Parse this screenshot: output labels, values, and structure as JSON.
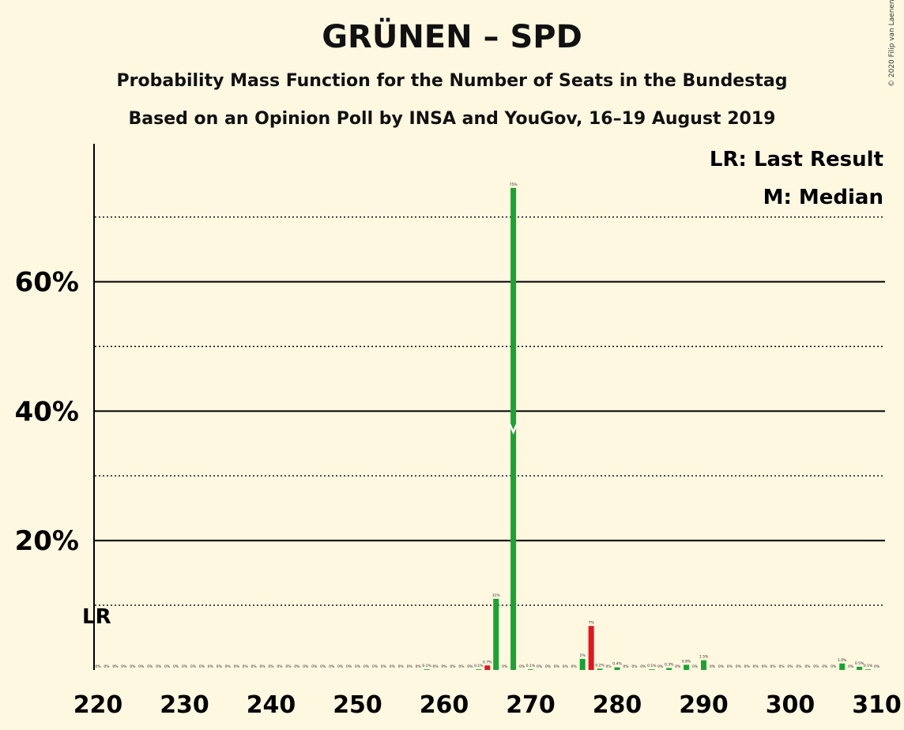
{
  "title": "GRÜNEN – SPD",
  "subtitle": "Probability Mass Function for the Number of Seats in the Bundestag",
  "subtitle2": "Based on an Opinion Poll by INSA and YouGov, 16–19 August 2019",
  "copyright": "© 2020 Filip van Laenen",
  "legend": {
    "lr": "LR: Last Result",
    "m": "M: Median"
  },
  "markers": {
    "last_result_label": "LR",
    "last_result_seat": 220,
    "median_seat": 268,
    "median_symbol": "M"
  },
  "colors": {
    "green": "#1aa333",
    "red": "#e8141c",
    "background": "#fff8e1"
  },
  "chart_data": {
    "type": "bar",
    "xlabel": "",
    "ylabel": "",
    "xlim": [
      220,
      310
    ],
    "ylim": [
      0,
      80
    ],
    "x_ticks": [
      "220",
      "230",
      "240",
      "250",
      "260",
      "270",
      "280",
      "290",
      "300",
      "310"
    ],
    "y_ticks": [
      "20%",
      "40%",
      "60%"
    ],
    "grid": "solid lines at 20/40/60%, dotted lines at 10/30/50/70%",
    "legend_position": "top-right",
    "bars": [
      {
        "x": 220,
        "value": 0,
        "label": "0%",
        "color": "green"
      },
      {
        "x": 221,
        "value": 0,
        "label": "0%",
        "color": "green"
      },
      {
        "x": 222,
        "value": 0,
        "label": "0%",
        "color": "green"
      },
      {
        "x": 223,
        "value": 0,
        "label": "0%",
        "color": "green"
      },
      {
        "x": 224,
        "value": 0,
        "label": "0%",
        "color": "green"
      },
      {
        "x": 225,
        "value": 0,
        "label": "0%",
        "color": "green"
      },
      {
        "x": 226,
        "value": 0,
        "label": "0%",
        "color": "green"
      },
      {
        "x": 227,
        "value": 0,
        "label": "0%",
        "color": "green"
      },
      {
        "x": 228,
        "value": 0,
        "label": "0%",
        "color": "green"
      },
      {
        "x": 229,
        "value": 0,
        "label": "0%",
        "color": "green"
      },
      {
        "x": 230,
        "value": 0,
        "label": "0%",
        "color": "green"
      },
      {
        "x": 231,
        "value": 0,
        "label": "0%",
        "color": "green"
      },
      {
        "x": 232,
        "value": 0,
        "label": "0%",
        "color": "green"
      },
      {
        "x": 233,
        "value": 0,
        "label": "0%",
        "color": "green"
      },
      {
        "x": 234,
        "value": 0,
        "label": "0%",
        "color": "green"
      },
      {
        "x": 235,
        "value": 0,
        "label": "0%",
        "color": "green"
      },
      {
        "x": 236,
        "value": 0,
        "label": "0%",
        "color": "green"
      },
      {
        "x": 237,
        "value": 0,
        "label": "0%",
        "color": "green"
      },
      {
        "x": 238,
        "value": 0,
        "label": "0%",
        "color": "green"
      },
      {
        "x": 239,
        "value": 0,
        "label": "0%",
        "color": "green"
      },
      {
        "x": 240,
        "value": 0,
        "label": "0%",
        "color": "green"
      },
      {
        "x": 241,
        "value": 0,
        "label": "0%",
        "color": "green"
      },
      {
        "x": 242,
        "value": 0,
        "label": "0%",
        "color": "green"
      },
      {
        "x": 243,
        "value": 0,
        "label": "0%",
        "color": "green"
      },
      {
        "x": 244,
        "value": 0,
        "label": "0%",
        "color": "green"
      },
      {
        "x": 245,
        "value": 0,
        "label": "0%",
        "color": "green"
      },
      {
        "x": 246,
        "value": 0,
        "label": "0%",
        "color": "green"
      },
      {
        "x": 247,
        "value": 0,
        "label": "0%",
        "color": "green"
      },
      {
        "x": 248,
        "value": 0,
        "label": "0%",
        "color": "green"
      },
      {
        "x": 249,
        "value": 0,
        "label": "0%",
        "color": "green"
      },
      {
        "x": 250,
        "value": 0,
        "label": "0%",
        "color": "green"
      },
      {
        "x": 251,
        "value": 0,
        "label": "0%",
        "color": "green"
      },
      {
        "x": 252,
        "value": 0,
        "label": "0%",
        "color": "green"
      },
      {
        "x": 253,
        "value": 0,
        "label": "0%",
        "color": "green"
      },
      {
        "x": 254,
        "value": 0,
        "label": "0%",
        "color": "green"
      },
      {
        "x": 255,
        "value": 0,
        "label": "0%",
        "color": "green"
      },
      {
        "x": 256,
        "value": 0,
        "label": "0%",
        "color": "green"
      },
      {
        "x": 257,
        "value": 0,
        "label": "0%",
        "color": "green"
      },
      {
        "x": 258,
        "value": 0.1,
        "label": "0.1%",
        "color": "green"
      },
      {
        "x": 259,
        "value": 0,
        "label": "0%",
        "color": "green"
      },
      {
        "x": 260,
        "value": 0,
        "label": "0%",
        "color": "green"
      },
      {
        "x": 261,
        "value": 0,
        "label": "0%",
        "color": "green"
      },
      {
        "x": 262,
        "value": 0,
        "label": "0%",
        "color": "green"
      },
      {
        "x": 263,
        "value": 0,
        "label": "0%",
        "color": "green"
      },
      {
        "x": 264,
        "value": 0.1,
        "label": "0.1%",
        "color": "green"
      },
      {
        "x": 265,
        "value": 0.7,
        "label": "0.7%",
        "color": "red"
      },
      {
        "x": 266,
        "value": 11,
        "label": "11%",
        "color": "green"
      },
      {
        "x": 267,
        "value": 0,
        "label": "0%",
        "color": "green"
      },
      {
        "x": 268,
        "value": 74.5,
        "label": "75%",
        "color": "green"
      },
      {
        "x": 269,
        "value": 0,
        "label": "0%",
        "color": "green"
      },
      {
        "x": 270,
        "value": 0.1,
        "label": "0.1%",
        "color": "green"
      },
      {
        "x": 271,
        "value": 0,
        "label": "0%",
        "color": "green"
      },
      {
        "x": 272,
        "value": 0,
        "label": "0%",
        "color": "green"
      },
      {
        "x": 273,
        "value": 0,
        "label": "0%",
        "color": "green"
      },
      {
        "x": 274,
        "value": 0,
        "label": "0%",
        "color": "green"
      },
      {
        "x": 275,
        "value": 0,
        "label": "0%",
        "color": "green"
      },
      {
        "x": 276,
        "value": 1.7,
        "label": "2%",
        "color": "green"
      },
      {
        "x": 277,
        "value": 6.8,
        "label": "7%",
        "color": "red"
      },
      {
        "x": 278,
        "value": 0.2,
        "label": "0.2%",
        "color": "green"
      },
      {
        "x": 279,
        "value": 0,
        "label": "0%",
        "color": "green"
      },
      {
        "x": 280,
        "value": 0.4,
        "label": "0.4%",
        "color": "green"
      },
      {
        "x": 281,
        "value": 0,
        "label": "0%",
        "color": "green"
      },
      {
        "x": 282,
        "value": 0,
        "label": "0%",
        "color": "green"
      },
      {
        "x": 283,
        "value": 0,
        "label": "0%",
        "color": "green"
      },
      {
        "x": 284,
        "value": 0.1,
        "label": "0.1%",
        "color": "green"
      },
      {
        "x": 285,
        "value": 0,
        "label": "0%",
        "color": "green"
      },
      {
        "x": 286,
        "value": 0.3,
        "label": "0.3%",
        "color": "green"
      },
      {
        "x": 287,
        "value": 0,
        "label": "0%",
        "color": "green"
      },
      {
        "x": 288,
        "value": 0.8,
        "label": "0.8%",
        "color": "green"
      },
      {
        "x": 289,
        "value": 0,
        "label": "0%",
        "color": "green"
      },
      {
        "x": 290,
        "value": 1.5,
        "label": "1.5%",
        "color": "green"
      },
      {
        "x": 291,
        "value": 0,
        "label": "0%",
        "color": "green"
      },
      {
        "x": 292,
        "value": 0,
        "label": "0%",
        "color": "green"
      },
      {
        "x": 293,
        "value": 0,
        "label": "0%",
        "color": "green"
      },
      {
        "x": 294,
        "value": 0,
        "label": "0%",
        "color": "green"
      },
      {
        "x": 295,
        "value": 0,
        "label": "0%",
        "color": "green"
      },
      {
        "x": 296,
        "value": 0,
        "label": "0%",
        "color": "green"
      },
      {
        "x": 297,
        "value": 0,
        "label": "0%",
        "color": "green"
      },
      {
        "x": 298,
        "value": 0,
        "label": "0%",
        "color": "green"
      },
      {
        "x": 299,
        "value": 0,
        "label": "0%",
        "color": "green"
      },
      {
        "x": 300,
        "value": 0,
        "label": "0%",
        "color": "green"
      },
      {
        "x": 301,
        "value": 0,
        "label": "0%",
        "color": "green"
      },
      {
        "x": 302,
        "value": 0,
        "label": "0%",
        "color": "green"
      },
      {
        "x": 303,
        "value": 0,
        "label": "0%",
        "color": "green"
      },
      {
        "x": 304,
        "value": 0,
        "label": "0%",
        "color": "green"
      },
      {
        "x": 305,
        "value": 0,
        "label": "0%",
        "color": "green"
      },
      {
        "x": 306,
        "value": 1.0,
        "label": "1.0%",
        "color": "green"
      },
      {
        "x": 307,
        "value": 0,
        "label": "0%",
        "color": "green"
      },
      {
        "x": 308,
        "value": 0.5,
        "label": "0.5%",
        "color": "green"
      },
      {
        "x": 309,
        "value": 0.1,
        "label": "0.1%",
        "color": "green"
      },
      {
        "x": 310,
        "value": 0,
        "label": "0%",
        "color": "green"
      }
    ]
  }
}
